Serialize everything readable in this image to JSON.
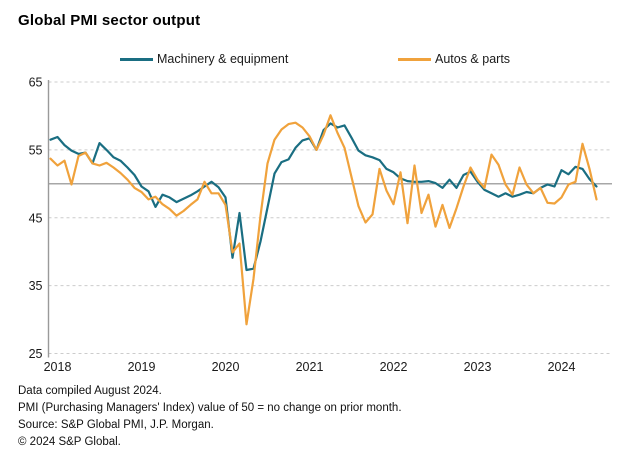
{
  "header": {
    "title": "Global PMI sector output"
  },
  "legend": {
    "items": [
      {
        "label": "Machinery & equipment",
        "color": "#1A6E82"
      },
      {
        "label": "Autos & parts",
        "color": "#F0A23C"
      }
    ]
  },
  "chart_data": {
    "type": "line",
    "title": "Global PMI sector output",
    "frequency": "monthly",
    "x_start": "2018-01",
    "x_end": "2024-07",
    "xlabel": "",
    "ylabel": "",
    "ylim": [
      25,
      65
    ],
    "yticks": [
      25,
      35,
      45,
      55,
      65
    ],
    "xticks": [
      "2018",
      "2019",
      "2020",
      "2021",
      "2022",
      "2023",
      "2024"
    ],
    "reference_line": 50,
    "grid": "horizontal-dashed",
    "legend_position": "top",
    "series": [
      {
        "name": "Machinery & equipment",
        "color": "#1A6E82",
        "values": [
          56.5,
          56.9,
          55.7,
          54.9,
          54.4,
          54.6,
          53.0,
          56.0,
          55.0,
          53.9,
          53.4,
          52.4,
          51.3,
          49.6,
          48.9,
          46.6,
          48.4,
          48.0,
          47.3,
          47.8,
          48.3,
          48.9,
          49.6,
          50.3,
          49.5,
          48.0,
          39.1,
          45.7,
          37.3,
          37.5,
          41.5,
          46.5,
          51.5,
          53.2,
          53.6,
          55.3,
          56.4,
          56.7,
          55.0,
          57.9,
          58.9,
          58.3,
          58.6,
          56.8,
          54.9,
          54.2,
          53.9,
          53.5,
          52.2,
          51.7,
          50.8,
          50.4,
          50.3,
          50.3,
          50.4,
          50.1,
          49.4,
          50.6,
          49.4,
          51.3,
          51.8,
          50.3,
          49.1,
          48.6,
          48.1,
          48.6,
          48.1,
          48.4,
          48.8,
          48.6,
          49.4,
          49.9,
          49.6,
          52.0,
          51.4,
          52.5,
          52.2,
          50.7,
          49.6
        ]
      },
      {
        "name": "Autos & parts",
        "color": "#F0A23C",
        "values": [
          53.7,
          52.7,
          53.4,
          49.9,
          54.1,
          54.6,
          53.0,
          52.7,
          53.1,
          52.4,
          51.6,
          50.6,
          49.4,
          48.8,
          47.7,
          48.1,
          47.0,
          46.3,
          45.3,
          46.0,
          46.9,
          47.7,
          50.3,
          48.6,
          48.6,
          46.9,
          39.9,
          41.2,
          29.3,
          36.0,
          45.3,
          53.0,
          56.5,
          58.0,
          58.8,
          59.0,
          58.3,
          57.0,
          55.0,
          57.2,
          60.1,
          57.5,
          55.3,
          51.0,
          46.7,
          44.3,
          45.5,
          52.2,
          49.0,
          47.0,
          51.7,
          44.2,
          52.7,
          45.7,
          48.4,
          43.7,
          46.9,
          43.5,
          46.4,
          49.6,
          52.4,
          50.6,
          49.4,
          54.3,
          52.8,
          49.9,
          48.4,
          52.4,
          49.9,
          48.6,
          49.4,
          47.2,
          47.1,
          48.0,
          49.9,
          50.3,
          55.9,
          52.2,
          47.7
        ]
      }
    ]
  },
  "footer": {
    "lines": [
      "Data compiled August 2024.",
      "PMI (Purchasing Managers' Index) value of 50 = no change on prior month.",
      "Source: S&P Global PMI, J.P. Morgan.",
      "© 2024 S&P Global."
    ]
  },
  "colors": {
    "axis_line": "#9a9a9a",
    "gridline": "#cccccc",
    "reference_line": "#8a8a8a",
    "axis_text": "#1a1a1a"
  }
}
